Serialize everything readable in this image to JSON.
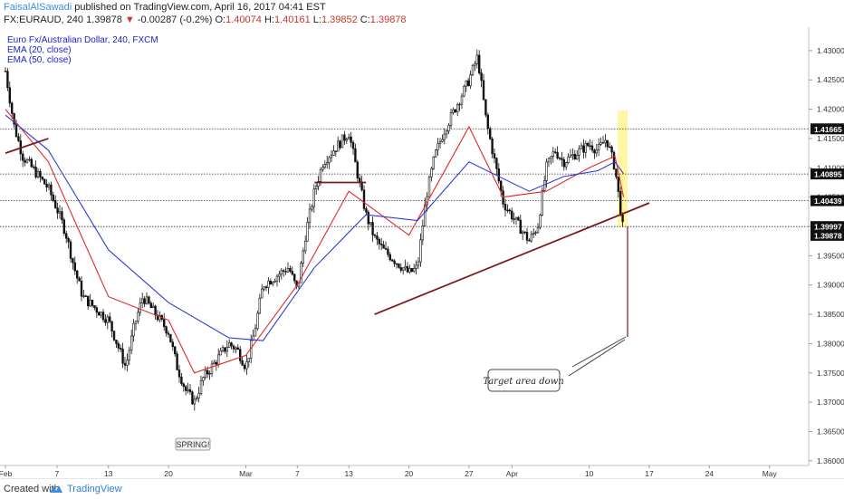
{
  "header": {
    "author": "FaisalAlSawadi",
    "published": "published on TradingView.com, April 16, 2017 04:41 EST",
    "symbol": "FX:EURAUD, 240",
    "last": "1.39878",
    "change_arrow": "▼",
    "change": "-0.00287 (-0.2%)",
    "o_label": "O:",
    "o_value": "1.40074",
    "h_label": "H:",
    "h_value": "1.40161",
    "l_label": "L:",
    "l_value": "1.39852",
    "c_label": "C:",
    "c_value": "1.39878"
  },
  "legend": {
    "title": "Euro Fx/Australian Dollar, 240, FXCM",
    "ema20": "EMA (20, close)",
    "ema50": "EMA (50, close)"
  },
  "footer": {
    "created_with": "Created with",
    "brand": "TradingView"
  },
  "colors": {
    "candle": "#111111",
    "ema20": "#e02a2a",
    "ema50": "#2a3bd6",
    "trendline": "#7a1a1a",
    "level_label_bg": "#111111",
    "highlight": "#fff59a",
    "title_text": "#1a23c8"
  },
  "chart_data": {
    "type": "line",
    "title": "Euro Fx/Australian Dollar, 240, FXCM",
    "x_ticks": [
      "Feb",
      "7",
      "13",
      "20",
      "Mar",
      "7",
      "13",
      "20",
      "27",
      "Apr",
      "10",
      "17",
      "24",
      "May"
    ],
    "y_ticks": [
      "1.43000",
      "1.42500",
      "1.42000",
      "1.41500",
      "1.41000",
      "1.40500",
      "1.40000",
      "1.39500",
      "1.39000",
      "1.38500",
      "1.38000",
      "1.37500",
      "1.37000",
      "1.36500",
      "1.36000"
    ],
    "ylim": [
      1.3592,
      1.434
    ],
    "price_labels": [
      "1.41665",
      "1.40895",
      "1.40439",
      "1.39997",
      "1.39878"
    ],
    "horizontal_levels": [
      1.41665,
      1.40895,
      1.40439,
      1.39997
    ],
    "annotations": [
      "SPRING!",
      "Target area down"
    ],
    "series": [
      {
        "name": "Euro Fx/Australian Dollar, 240, FXCM",
        "x": [
          "Feb 1",
          "Feb 2",
          "Feb 3",
          "Feb 6",
          "Feb 7",
          "Feb 8",
          "Feb 9",
          "Feb 10",
          "Feb 13",
          "Feb 14",
          "Feb 15",
          "Feb 16",
          "Feb 17",
          "Feb 20",
          "Feb 21",
          "Feb 22",
          "Feb 23",
          "Feb 24",
          "Feb 27",
          "Feb 28",
          "Mar 1",
          "Mar 2",
          "Mar 3",
          "Mar 6",
          "Mar 7",
          "Mar 8",
          "Mar 9",
          "Mar 10",
          "Mar 13",
          "Mar 14",
          "Mar 15",
          "Mar 16",
          "Mar 17",
          "Mar 20",
          "Mar 21",
          "Mar 22",
          "Mar 23",
          "Mar 24",
          "Mar 27",
          "Mar 28",
          "Mar 29",
          "Mar 30",
          "Mar 31",
          "Apr 3",
          "Apr 4",
          "Apr 5",
          "Apr 6",
          "Apr 7",
          "Apr 10",
          "Apr 11",
          "Apr 12",
          "Apr 13",
          "Apr 14"
        ],
        "values": [
          1.4265,
          1.4172,
          1.412,
          1.4065,
          1.403,
          1.399,
          1.393,
          1.388,
          1.384,
          1.38,
          1.376,
          1.383,
          1.388,
          1.382,
          1.376,
          1.372,
          1.37,
          1.374,
          1.38,
          1.379,
          1.376,
          1.382,
          1.39,
          1.393,
          1.389,
          1.399,
          1.406,
          1.411,
          1.416,
          1.409,
          1.402,
          1.398,
          1.396,
          1.392,
          1.393,
          1.405,
          1.412,
          1.416,
          1.425,
          1.429,
          1.418,
          1.411,
          1.404,
          1.3975,
          1.4,
          1.41,
          1.413,
          1.411,
          1.414,
          1.413,
          1.415,
          1.41,
          1.3988
        ]
      },
      {
        "name": "EMA (20, close)",
        "x": [
          "Feb 1",
          "Feb 6",
          "Feb 13",
          "Feb 20",
          "Feb 23",
          "Mar 1",
          "Mar 7",
          "Mar 13",
          "Mar 20",
          "Mar 27",
          "Mar 31",
          "Apr 5",
          "Apr 10",
          "Apr 13",
          "Apr 14"
        ],
        "values": [
          1.42,
          1.411,
          1.388,
          1.384,
          1.375,
          1.378,
          1.39,
          1.406,
          1.3985,
          1.417,
          1.405,
          1.406,
          1.41,
          1.412,
          1.405
        ]
      },
      {
        "name": "EMA (50, close)",
        "x": [
          "Feb 1",
          "Feb 6",
          "Feb 13",
          "Feb 20",
          "Feb 27",
          "Mar 3",
          "Mar 9",
          "Mar 15",
          "Mar 21",
          "Mar 27",
          "Apr 3",
          "Apr 7",
          "Apr 11",
          "Apr 13",
          "Apr 14"
        ],
        "values": [
          1.419,
          1.413,
          1.396,
          1.387,
          1.381,
          1.3805,
          1.393,
          1.402,
          1.401,
          1.411,
          1.406,
          1.4085,
          1.4095,
          1.411,
          1.409
        ]
      }
    ],
    "trend_lines": [
      {
        "from": [
          "Feb 1",
          1.4125
        ],
        "to": [
          "Feb 6",
          1.415
        ]
      },
      {
        "from": [
          "Mar 9",
          1.4075
        ],
        "to": [
          "Mar 15",
          1.4075
        ]
      },
      {
        "from": [
          "Mar 16",
          1.385
        ],
        "to": [
          "Apr 17",
          1.404
        ]
      }
    ]
  }
}
